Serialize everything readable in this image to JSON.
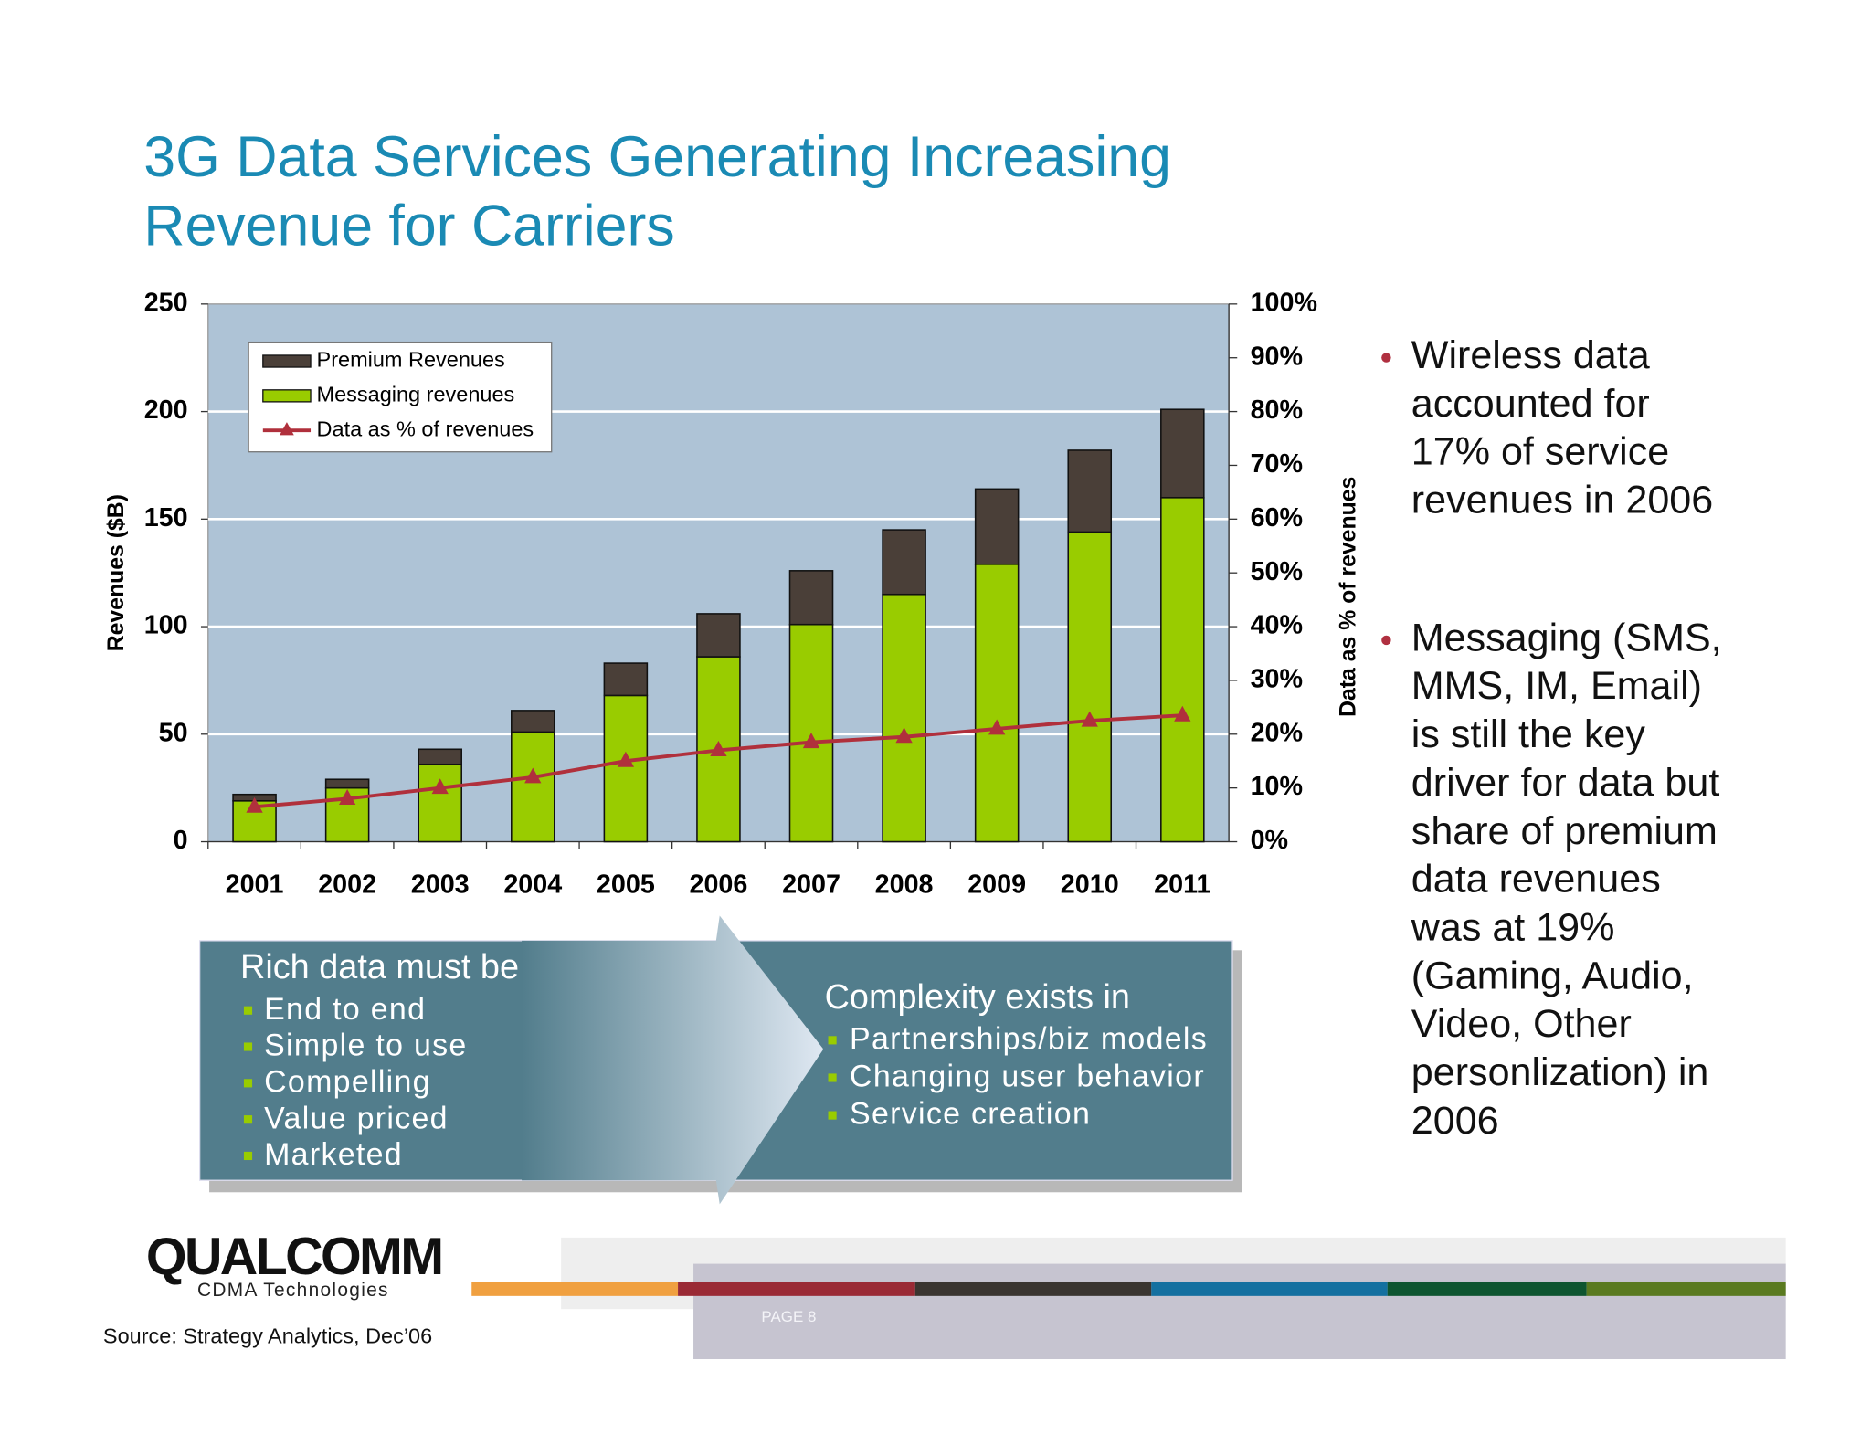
{
  "slide": {
    "title_lines": [
      "3G Data Services Generating Increasing",
      "Revenue for Carriers"
    ],
    "bullets": [
      [
        "Wireless data",
        "accounted for",
        "17% of service",
        "revenues in 2006"
      ],
      [
        "Messaging (SMS,",
        "MMS, IM, Email)",
        "is still the key",
        "driver for data but",
        "share of premium",
        "data revenues",
        "was at 19%",
        "(Gaming, Audio,",
        "Video, Other",
        "personlization) in",
        "2006"
      ]
    ],
    "diagram": {
      "left_heading": "Rich data must be",
      "left_items": [
        "End to end",
        "Simple to use",
        "Compelling",
        "Value priced",
        "Marketed"
      ],
      "right_heading": "Complexity exists in",
      "right_items": [
        "Partnerships/biz models",
        "Changing user behavior",
        "Service creation"
      ]
    },
    "logo": "QUALCOMM",
    "logo_sub": "CDMA Technologies",
    "source": "Source: Strategy Analytics, Dec’06",
    "page": "PAGE 8"
  },
  "chart_data": {
    "type": "bar",
    "stacked": true,
    "categories": [
      "2001",
      "2002",
      "2003",
      "2004",
      "2005",
      "2006",
      "2007",
      "2008",
      "2009",
      "2010",
      "2011"
    ],
    "series": [
      {
        "name": "Premium Revenues",
        "color": "#4a3f38",
        "values": [
          3,
          4,
          7,
          10,
          15,
          20,
          25,
          30,
          35,
          38,
          41
        ]
      },
      {
        "name": "Messaging revenues",
        "color": "#99cc00",
        "values": [
          19,
          25,
          36,
          51,
          68,
          86,
          101,
          115,
          129,
          144,
          160
        ]
      },
      {
        "name": "Data as % of revenues",
        "type": "line",
        "axis": "y2",
        "color": "#b0303c",
        "values": [
          6.5,
          8,
          10,
          12,
          15,
          17,
          18.5,
          19.5,
          21,
          22.5,
          23.5
        ]
      }
    ],
    "y_label": "Revenues ($B)",
    "y2_label": "Data as % of revenues",
    "ylim": [
      0,
      250
    ],
    "yticks": [
      0,
      50,
      100,
      150,
      200,
      250
    ],
    "y2lim": [
      0,
      100
    ],
    "y2ticks": [
      {
        "value": 0,
        "label": "0%"
      },
      {
        "value": 10,
        "label": "10%"
      },
      {
        "value": 20,
        "label": "20%"
      },
      {
        "value": 30,
        "label": "30%"
      },
      {
        "value": 40,
        "label": "40%"
      },
      {
        "value": 50,
        "label": "50%"
      },
      {
        "value": 60,
        "label": "60%"
      },
      {
        "value": 70,
        "label": "70%"
      },
      {
        "value": 80,
        "label": "80%"
      },
      {
        "value": 90,
        "label": "90%"
      },
      {
        "value": 100,
        "label": "100%"
      }
    ],
    "grid": true,
    "plot_background": "#aec3d6",
    "legend": "top-left"
  }
}
